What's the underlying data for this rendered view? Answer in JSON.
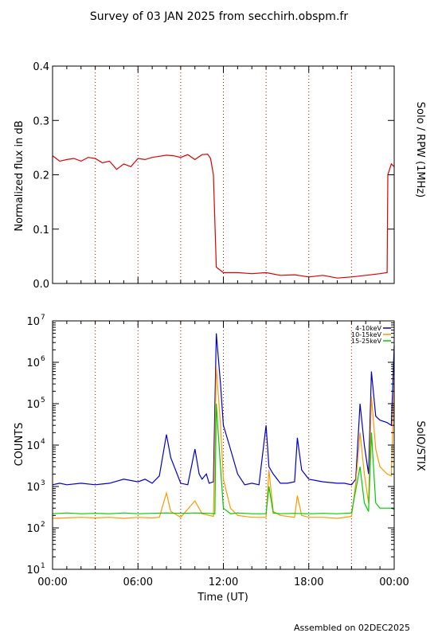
{
  "figure": {
    "title": "Survey of 03 JAN 2025 from secchirh.obspm.fr",
    "footer": "Assembled on 02DEC2025",
    "x_axis_label": "Time (UT)",
    "x_tick_labels": [
      "00:00",
      "06:00",
      "12:00",
      "18:00",
      "00:00"
    ],
    "colors": {
      "axes": "#000000",
      "gridline": "#cc0000"
    }
  },
  "chart_data": [
    {
      "type": "line",
      "right_label": "Solo / RPW (1MHz)",
      "ylabel": "Normalized flux in dB",
      "ylim": [
        0.0,
        0.4
      ],
      "yticks": [
        "0.0",
        "0.1",
        "0.2",
        "0.3",
        "0.4"
      ],
      "xlim_hours": [
        0,
        24
      ],
      "vertical_gridlines_hours": [
        3,
        6,
        9,
        12,
        15,
        18,
        21
      ],
      "series": [
        {
          "color": "#dd0000",
          "x_hours": [
            0,
            0.5,
            1,
            1.5,
            2,
            2.5,
            3,
            3.5,
            4,
            4.5,
            5,
            5.5,
            6,
            6.5,
            7,
            7.5,
            8,
            8.5,
            9,
            9.5,
            10,
            10.5,
            10.9,
            11.1,
            11.3,
            11.5,
            12,
            13,
            14,
            15,
            16,
            17,
            18,
            19,
            20,
            21,
            22,
            23,
            23.5,
            23.55,
            23.8,
            24
          ],
          "values": [
            0.235,
            0.225,
            0.228,
            0.23,
            0.225,
            0.232,
            0.23,
            0.222,
            0.225,
            0.21,
            0.22,
            0.215,
            0.23,
            0.228,
            0.232,
            0.234,
            0.236,
            0.235,
            0.232,
            0.237,
            0.228,
            0.237,
            0.238,
            0.23,
            0.2,
            0.03,
            0.02,
            0.02,
            0.018,
            0.02,
            0.015,
            0.016,
            0.012,
            0.015,
            0.01,
            0.012,
            0.015,
            0.018,
            0.02,
            0.2,
            0.22,
            0.215
          ]
        }
      ]
    },
    {
      "type": "line",
      "right_label": "SolO/STIX",
      "ylabel": "COUNTS",
      "y_scale": "log",
      "ylim": [
        10,
        10000000
      ],
      "yticks": [
        "10^1",
        "10^2",
        "10^3",
        "10^4",
        "10^5",
        "10^6",
        "10^7"
      ],
      "xlim_hours": [
        0,
        24
      ],
      "vertical_gridlines_hours": [
        3,
        6,
        9,
        12,
        15,
        18,
        21
      ],
      "legend_placement": "top-right",
      "series": [
        {
          "name": "4-10keV",
          "color": "#0000cc",
          "x_hours": [
            0,
            0.5,
            1,
            2,
            3,
            4,
            5,
            6,
            6.5,
            7,
            7.5,
            8,
            8.3,
            9,
            9.5,
            10,
            10.3,
            10.5,
            10.8,
            11,
            11.3,
            11.5,
            11.8,
            12,
            12.5,
            13,
            13.5,
            14,
            14.5,
            15,
            15.2,
            15.5,
            16,
            16.5,
            17,
            17.2,
            17.5,
            18,
            19,
            20,
            20.5,
            21,
            21.3,
            21.6,
            21.9,
            22.2,
            22.4,
            22.7,
            23,
            23.5,
            23.8,
            24
          ],
          "values": [
            1100,
            1200,
            1100,
            1200,
            1100,
            1200,
            1500,
            1300,
            1500,
            1200,
            1800,
            18000,
            5000,
            1200,
            1100,
            8000,
            2000,
            1500,
            2000,
            1200,
            1300,
            5000000,
            300000,
            30000,
            8000,
            2000,
            1100,
            1200,
            1100,
            30000,
            3000,
            2000,
            1200,
            1200,
            1300,
            15000,
            2500,
            1500,
            1300,
            1200,
            1200,
            1100,
            1500,
            100000,
            10000,
            2000,
            600000,
            50000,
            40000,
            35000,
            30000,
            2500000
          ]
        },
        {
          "name": "10-15keV",
          "color": "#ff9900",
          "x_hours": [
            0,
            1,
            2,
            3,
            4,
            5,
            6,
            7,
            7.5,
            8,
            8.3,
            9,
            10,
            10.5,
            11,
            11.3,
            11.5,
            11.8,
            12,
            12.5,
            13,
            14,
            15,
            15.2,
            15.5,
            16,
            17,
            17.2,
            17.5,
            18,
            19,
            20,
            21,
            21.3,
            21.6,
            21.9,
            22.2,
            22.4,
            22.7,
            23,
            23.5,
            23.8,
            24
          ],
          "values": [
            170,
            175,
            180,
            175,
            180,
            170,
            180,
            175,
            180,
            700,
            250,
            180,
            450,
            220,
            200,
            190,
            800000,
            30000,
            1500,
            300,
            200,
            180,
            180,
            2500,
            250,
            200,
            180,
            600,
            200,
            180,
            180,
            170,
            190,
            1200,
            20000,
            2000,
            400,
            150000,
            8000,
            3000,
            2000,
            1800,
            400000
          ]
        },
        {
          "name": "15-25keV",
          "color": "#00cc00",
          "x_hours": [
            0,
            1,
            2,
            3,
            4,
            5,
            6,
            7,
            8,
            9,
            10,
            11,
            11.4,
            11.5,
            11.8,
            12,
            12.5,
            13,
            14,
            15,
            15.2,
            15.5,
            16,
            17,
            18,
            19,
            20,
            21,
            21.6,
            21.9,
            22.2,
            22.4,
            22.7,
            23,
            23.5,
            23.8,
            24
          ],
          "values": [
            220,
            230,
            220,
            225,
            220,
            230,
            220,
            225,
            230,
            225,
            230,
            225,
            220,
            100000,
            3000,
            300,
            220,
            230,
            220,
            220,
            1000,
            230,
            220,
            225,
            220,
            225,
            220,
            230,
            3000,
            400,
            250,
            20000,
            400,
            300,
            300,
            300,
            280
          ]
        }
      ]
    }
  ]
}
